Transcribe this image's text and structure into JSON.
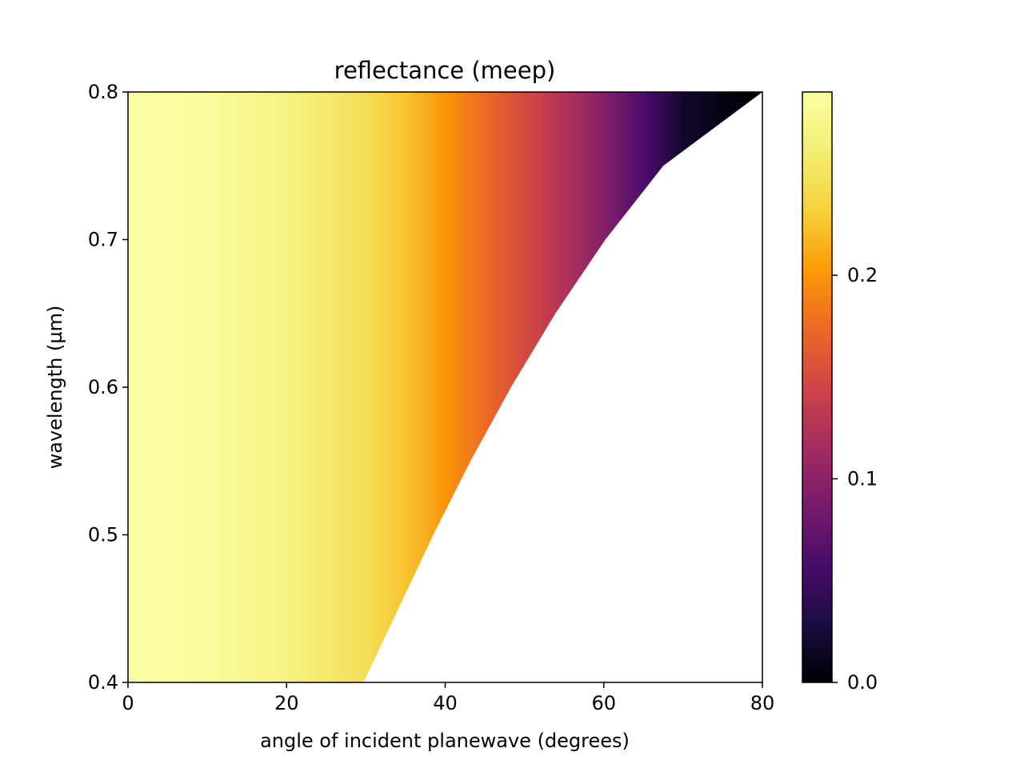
{
  "chart_data": {
    "type": "heatmap",
    "title": "reflectance (meep)",
    "xlabel": "angle of incident planewave (degrees)",
    "ylabel": "wavelength (µm)",
    "xlim": [
      0,
      80
    ],
    "ylim": [
      0.4,
      0.8
    ],
    "xticks": [
      0,
      20,
      40,
      60,
      80
    ],
    "xtick_labels": [
      "0",
      "20",
      "40",
      "60",
      "80"
    ],
    "yticks": [
      0.4,
      0.5,
      0.6,
      0.7,
      0.8
    ],
    "ytick_labels": [
      "0.4",
      "0.5",
      "0.6",
      "0.7",
      "0.8"
    ],
    "colorbar": {
      "colormap": "inferno",
      "range": [
        0.0,
        0.29
      ],
      "ticks": [
        0.0,
        0.1,
        0.2
      ],
      "tick_labels": [
        "0.0",
        "0.1",
        "0.2"
      ]
    },
    "data_boundary": {
      "description_values": "maximum angle (degrees) with data, per wavelength (um)",
      "wavelength": [
        0.4,
        0.45,
        0.5,
        0.55,
        0.6,
        0.65,
        0.7,
        0.75,
        0.8
      ],
      "max_angle": [
        29.7,
        34.1,
        38.5,
        43.2,
        48.3,
        53.9,
        60.2,
        67.5,
        80.0
      ]
    },
    "reflectance_profile": {
      "angle": [
        0,
        10,
        20,
        30,
        35,
        40,
        45,
        50,
        55,
        60,
        65,
        70,
        75,
        80
      ],
      "reflectance": [
        0.29,
        0.285,
        0.27,
        0.245,
        0.225,
        0.2,
        0.175,
        0.15,
        0.125,
        0.095,
        0.06,
        0.02,
        0.005,
        0.0
      ]
    },
    "grid": false
  }
}
